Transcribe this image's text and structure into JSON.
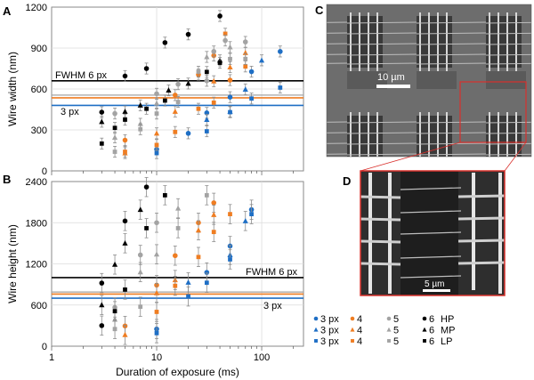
{
  "panels": {
    "a": "A",
    "b": "B",
    "c": "C",
    "d": "D"
  },
  "colors": {
    "blue": "#1f6fc5",
    "orange": "#ef7d22",
    "gray": "#a3a3a3",
    "black": "#000000",
    "zoom_box": "#d9302c"
  },
  "images": {
    "c": {
      "scale_bar": "10 µm"
    },
    "d": {
      "scale_bar": "5 µm"
    }
  },
  "legend": {
    "rows": [
      [
        "3 px",
        "4",
        "5",
        "6"
      ],
      [
        "3 px",
        "4",
        "5",
        "6"
      ],
      [
        "3 px",
        "4",
        "5",
        "6"
      ]
    ],
    "power_labels": [
      "HP",
      "MP",
      "LP"
    ]
  },
  "chart_data": [
    {
      "type": "scatter",
      "panel": "A",
      "title": "",
      "xlabel": "",
      "ylabel": "Wire width (nm)",
      "xscale": "log",
      "xlim": [
        1,
        250
      ],
      "ylim": [
        0,
        1200
      ],
      "yticks": [
        "0",
        "300",
        "600",
        "900",
        "1200"
      ],
      "ytick_values": [
        0,
        300,
        600,
        900,
        1200
      ],
      "grid": true,
      "typical_error": 40,
      "reference_lines": [
        {
          "label": "FWHM 6 px",
          "value": 660,
          "color": "black"
        },
        {
          "label": "",
          "value": 555,
          "color": "gray"
        },
        {
          "label": "",
          "value": 535,
          "color": "orange"
        },
        {
          "label": "3 px",
          "value": 480,
          "color": "blue"
        }
      ],
      "series": [
        {
          "name": "3 px HP",
          "color": "blue",
          "marker": "circle",
          "points": [
            [
              10,
              158
            ],
            [
              20,
              275
            ],
            [
              30,
              425
            ],
            [
              50,
              540
            ],
            [
              80,
              727
            ],
            [
              150,
              875
            ]
          ]
        },
        {
          "name": "3 px MP",
          "color": "blue",
          "marker": "triangle",
          "points": [
            [
              30,
              375
            ],
            [
              50,
              435
            ],
            [
              70,
              597
            ],
            [
              100,
              810
            ]
          ]
        },
        {
          "name": "3 px LP",
          "color": "blue",
          "marker": "square",
          "points": [
            [
              10,
              130
            ],
            [
              30,
              290
            ],
            [
              50,
              430
            ],
            [
              80,
              530
            ],
            [
              150,
              610
            ]
          ]
        },
        {
          "name": "4 HP",
          "color": "orange",
          "marker": "circle",
          "points": [
            [
              5,
              225
            ],
            [
              15,
              555
            ],
            [
              25,
              705
            ],
            [
              35,
              845
            ],
            [
              50,
              665
            ]
          ]
        },
        {
          "name": "4 MP",
          "color": "orange",
          "marker": "triangle",
          "points": [
            [
              5,
              130
            ],
            [
              10,
              275
            ],
            [
              15,
              435
            ],
            [
              35,
              657
            ],
            [
              50,
              760
            ],
            [
              70,
              865
            ]
          ]
        },
        {
          "name": "4 LP",
          "color": "orange",
          "marker": "square",
          "points": [
            [
              5,
              140
            ],
            [
              10,
              190
            ],
            [
              15,
              285
            ],
            [
              25,
              455
            ],
            [
              35,
              500
            ],
            [
              45,
              1005
            ],
            [
              70,
              765
            ]
          ]
        },
        {
          "name": "5 HP",
          "color": "gray",
          "marker": "circle",
          "points": [
            [
              4,
              420
            ],
            [
              10,
              565
            ],
            [
              16,
              635
            ],
            [
              30,
              660
            ],
            [
              35,
              875
            ],
            [
              45,
              955
            ],
            [
              70,
              945
            ]
          ]
        },
        {
          "name": "5 MP",
          "color": "gray",
          "marker": "triangle",
          "points": [
            [
              4,
              245
            ],
            [
              7,
              345
            ],
            [
              10,
              495
            ],
            [
              30,
              835
            ],
            [
              50,
              907
            ]
          ]
        },
        {
          "name": "5 LP",
          "color": "gray",
          "marker": "square",
          "points": [
            [
              4,
              140
            ],
            [
              7,
              305
            ],
            [
              10,
              420
            ],
            [
              16,
              505
            ],
            [
              25,
              727
            ],
            [
              50,
              820
            ],
            [
              70,
              820
            ]
          ]
        },
        {
          "name": "6 HP",
          "color": "black",
          "marker": "circle",
          "points": [
            [
              3,
              430
            ],
            [
              5,
              695
            ],
            [
              8,
              750
            ],
            [
              12,
              940
            ],
            [
              20,
              1000
            ],
            [
              40,
              1135
            ]
          ]
        },
        {
          "name": "6 MP",
          "color": "black",
          "marker": "triangle",
          "points": [
            [
              3,
              360
            ],
            [
              5,
              435
            ],
            [
              7,
              480
            ],
            [
              13,
              590
            ],
            [
              20,
              640
            ],
            [
              40,
              810
            ]
          ]
        },
        {
          "name": "6 LP",
          "color": "black",
          "marker": "square",
          "points": [
            [
              3,
              200
            ],
            [
              4,
              315
            ],
            [
              5,
              375
            ],
            [
              8,
              455
            ],
            [
              12,
              515
            ],
            [
              30,
              725
            ],
            [
              40,
              792
            ]
          ]
        }
      ]
    },
    {
      "type": "scatter",
      "panel": "B",
      "title": "",
      "xlabel": "Duration of exposure (ms)",
      "ylabel": "Wire height (nm)",
      "xscale": "log",
      "xlim": [
        1,
        250
      ],
      "xticks": [
        "1",
        "10",
        "100"
      ],
      "xtick_values": [
        1,
        10,
        100
      ],
      "ylim": [
        0,
        2400
      ],
      "yticks": [
        "0",
        "600",
        "1200",
        "1800",
        "2400"
      ],
      "ytick_values": [
        0,
        600,
        1200,
        1800,
        2400
      ],
      "grid": true,
      "typical_error": 140,
      "reference_lines": [
        {
          "label": "FWHM 6 px",
          "value": 1000,
          "color": "black"
        },
        {
          "label": "",
          "value": 790,
          "color": "gray"
        },
        {
          "label": "",
          "value": 760,
          "color": "orange"
        },
        {
          "label": "3 px",
          "value": 700,
          "color": "blue"
        }
      ],
      "series": [
        {
          "name": "3 px HP",
          "color": "blue",
          "marker": "circle",
          "points": [
            [
              10,
              250
            ],
            [
              30,
              1075
            ],
            [
              50,
              1460
            ],
            [
              80,
              1990
            ]
          ]
        },
        {
          "name": "3 px MP",
          "color": "blue",
          "marker": "triangle",
          "points": [
            [
              20,
              930
            ],
            [
              50,
              1330
            ],
            [
              70,
              1825
            ]
          ]
        },
        {
          "name": "3 px LP",
          "color": "blue",
          "marker": "square",
          "points": [
            [
              10,
              190
            ],
            [
              20,
              725
            ],
            [
              30,
              925
            ],
            [
              50,
              1265
            ],
            [
              80,
              1925
            ]
          ]
        },
        {
          "name": "4 HP",
          "color": "orange",
          "marker": "circle",
          "points": [
            [
              5,
              295
            ],
            [
              10,
              890
            ],
            [
              15,
              1320
            ],
            [
              25,
              1800
            ],
            [
              35,
              2090
            ]
          ]
        },
        {
          "name": "4 MP",
          "color": "orange",
          "marker": "triangle",
          "points": [
            [
              5,
              165
            ],
            [
              10,
              775
            ],
            [
              15,
              965
            ],
            [
              25,
              1690
            ],
            [
              35,
              1915
            ]
          ]
        },
        {
          "name": "4 LP",
          "color": "orange",
          "marker": "square",
          "points": [
            [
              10,
              500
            ],
            [
              15,
              880
            ],
            [
              25,
              1300
            ],
            [
              35,
              1665
            ],
            [
              50,
              1925
            ]
          ]
        },
        {
          "name": "5 HP",
          "color": "gray",
          "marker": "circle",
          "points": [
            [
              4,
              565
            ],
            [
              7,
              1330
            ],
            [
              10,
              1800
            ]
          ]
        },
        {
          "name": "5 MP",
          "color": "gray",
          "marker": "triangle",
          "points": [
            [
              4,
              390
            ],
            [
              7,
              1080
            ],
            [
              10,
              1340
            ],
            [
              16,
              2010
            ]
          ]
        },
        {
          "name": "5 LP",
          "color": "gray",
          "marker": "square",
          "points": [
            [
              4,
              250
            ],
            [
              7,
              575
            ],
            [
              16,
              1720
            ],
            [
              30,
              2200
            ]
          ]
        },
        {
          "name": "6 HP",
          "color": "black",
          "marker": "circle",
          "points": [
            [
              3,
              920
            ],
            [
              3,
              300
            ],
            [
              5,
              1825
            ],
            [
              8,
              2320
            ]
          ]
        },
        {
          "name": "6 MP",
          "color": "black",
          "marker": "triangle",
          "points": [
            [
              3,
              600
            ],
            [
              4,
              1190
            ],
            [
              5,
              1500
            ],
            [
              7,
              1990
            ]
          ]
        },
        {
          "name": "6 LP",
          "color": "black",
          "marker": "square",
          "points": [
            [
              4,
              510
            ],
            [
              5,
              825
            ],
            [
              8,
              1720
            ],
            [
              12,
              2200
            ]
          ]
        }
      ]
    }
  ]
}
